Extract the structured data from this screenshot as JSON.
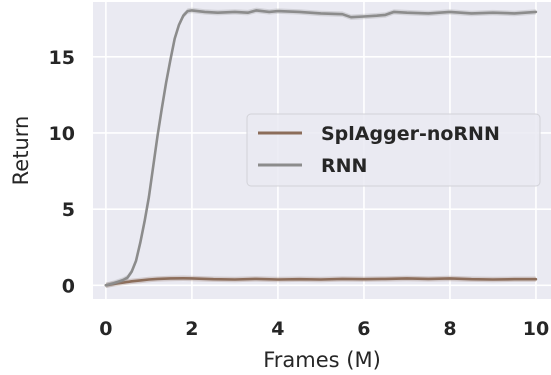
{
  "chart_data": {
    "type": "line",
    "title": "",
    "xlabel": "Frames (M)",
    "ylabel": "Return",
    "xlim": [
      -0.3,
      10.35
    ],
    "ylim": [
      -0.9,
      18.6
    ],
    "xticks": [
      0,
      2,
      4,
      6,
      8,
      10
    ],
    "yticks": [
      0,
      5,
      10,
      15
    ],
    "grid": true,
    "legend_position": "center-right",
    "series": [
      {
        "name": "SplAgger-noRNN",
        "color": "#8c6d5a",
        "x": [
          0,
          0.2,
          0.4,
          0.6,
          0.8,
          1.0,
          1.2,
          1.5,
          1.8,
          2.0,
          2.5,
          3.0,
          3.5,
          4.0,
          4.5,
          5.0,
          5.5,
          6.0,
          6.5,
          7.0,
          7.5,
          8.0,
          8.5,
          9.0,
          9.5,
          10.0
        ],
        "y": [
          0.0,
          0.1,
          0.18,
          0.26,
          0.32,
          0.38,
          0.42,
          0.45,
          0.46,
          0.45,
          0.4,
          0.38,
          0.42,
          0.38,
          0.4,
          0.38,
          0.42,
          0.4,
          0.42,
          0.45,
          0.42,
          0.45,
          0.4,
          0.38,
          0.4,
          0.4
        ]
      },
      {
        "name": "RNN",
        "color": "#8c8c8c",
        "x": [
          0,
          0.2,
          0.4,
          0.5,
          0.6,
          0.7,
          0.8,
          0.9,
          1.0,
          1.1,
          1.2,
          1.3,
          1.4,
          1.5,
          1.6,
          1.7,
          1.8,
          1.9,
          2.0,
          2.3,
          2.6,
          3.0,
          3.3,
          3.5,
          3.8,
          4.0,
          4.5,
          5.0,
          5.5,
          5.7,
          6.0,
          6.3,
          6.5,
          6.7,
          7.0,
          7.5,
          8.0,
          8.5,
          9.0,
          9.5,
          10.0
        ],
        "y": [
          0.0,
          0.15,
          0.35,
          0.5,
          0.9,
          1.6,
          2.8,
          4.2,
          5.8,
          7.8,
          9.8,
          11.6,
          13.3,
          14.8,
          16.2,
          17.1,
          17.7,
          18.0,
          18.05,
          17.95,
          17.9,
          17.95,
          17.9,
          18.05,
          17.95,
          18.0,
          17.95,
          17.85,
          17.8,
          17.6,
          17.65,
          17.7,
          17.75,
          17.95,
          17.9,
          17.85,
          17.95,
          17.85,
          17.9,
          17.85,
          17.95
        ]
      }
    ]
  }
}
